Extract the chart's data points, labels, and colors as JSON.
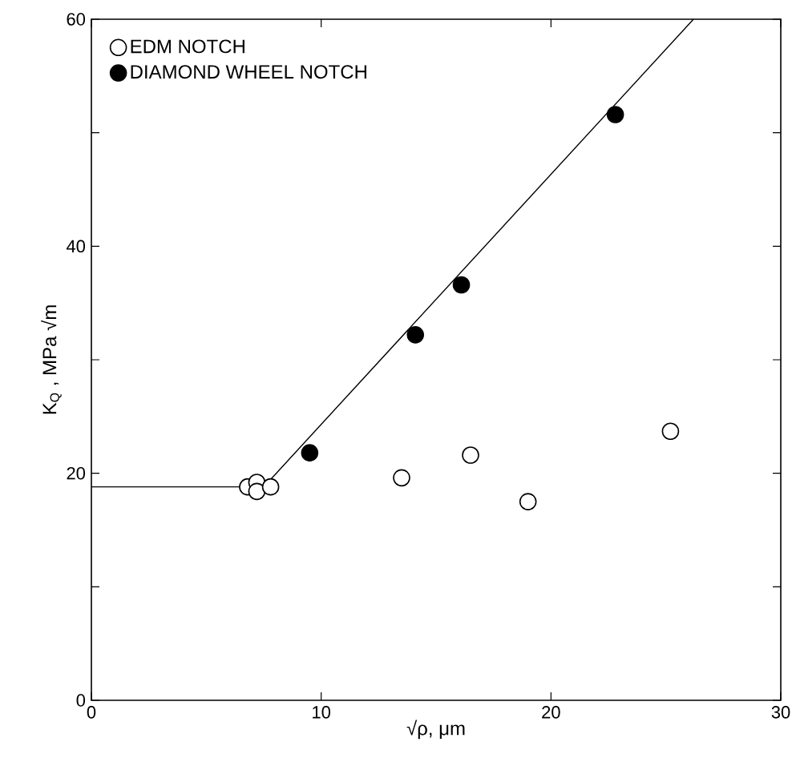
{
  "chart_data": {
    "type": "scatter",
    "xlabel": "√ρ, μm",
    "ylabel": "K$_{Q}$ , MPa √m",
    "xlim": [
      0,
      30
    ],
    "ylim": [
      0,
      60
    ],
    "xticks": [
      0,
      10,
      20,
      30
    ],
    "yticks": [
      0,
      {
        "value": 10,
        "label": null
      },
      20,
      {
        "value": 30,
        "label": null
      },
      40,
      {
        "value": 50,
        "label": null
      },
      60
    ],
    "grid": false,
    "legend": "top left",
    "series": [
      {
        "name": "EDM NOTCH",
        "color": "#ffffff",
        "marker": "circle",
        "x": [
          6.8,
          7.2,
          7.2,
          7.8,
          13.5,
          16.5,
          19.0,
          25.2
        ],
        "values": [
          18.8,
          19.2,
          18.4,
          18.8,
          19.6,
          21.6,
          17.5,
          23.7
        ]
      },
      {
        "name": "DIAMOND WHEEL NOTCH",
        "color": "#000000",
        "marker": "circle",
        "x": [
          9.5,
          14.1,
          16.1,
          22.8
        ],
        "values": [
          21.8,
          32.2,
          36.6,
          51.6
        ]
      },
      {
        "type": "line",
        "color": "#000000",
        "marker": "none",
        "x": [
          0,
          7.5,
          26.2
        ],
        "values": [
          18.8,
          18.8,
          60
        ]
      }
    ]
  }
}
